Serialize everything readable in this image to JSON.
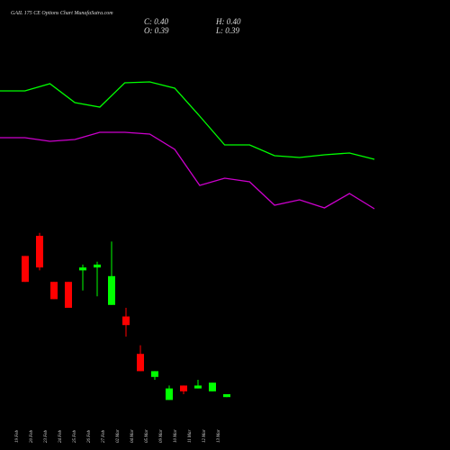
{
  "title": "GAIL 175 CE Options Chart MunafaSutra.com",
  "ohlc": [
    "C: 0.40",
    "H: 0.40",
    "O: 0.39",
    "L: 0.39"
  ],
  "chart_data": [
    {
      "type": "line",
      "categories": [
        null,
        null,
        null,
        null,
        null,
        null,
        null,
        null,
        null,
        null,
        null,
        null,
        null,
        null,
        null,
        null
      ],
      "ylim": [
        0,
        200
      ],
      "series": [
        {
          "color": "#00ff00",
          "values": [
            149,
            149,
            157,
            136,
            131,
            158,
            159,
            152,
            121,
            89,
            89,
            77,
            75,
            78,
            80,
            73
          ]
        },
        {
          "color": "#cc00cc",
          "values": [
            97,
            97,
            93,
            95,
            103,
            103,
            101,
            84,
            44,
            52,
            48,
            22,
            28,
            19,
            35,
            18
          ]
        }
      ]
    },
    {
      "type": "candlestick",
      "categories": [
        "19 Feb",
        "20 Feb",
        "23 Feb",
        "24 Feb",
        "25 Feb",
        "26 Feb",
        "27 Feb",
        "02 Mar",
        "04 Mar",
        "05 Mar",
        "09 Mar",
        "10 Mar",
        "11 Mar",
        "12 Mar",
        "13 Mar"
      ],
      "ylim": [
        0.3,
        1.0
      ],
      "up_color": "#00ff00",
      "down_color": "#ff0000",
      "open": [
        0.88,
        0.95,
        0.79,
        0.79,
        0.83,
        0.84,
        0.71,
        0.67,
        0.54,
        0.46,
        0.38,
        0.43,
        0.42,
        0.41,
        0.39
      ],
      "high": [
        0.88,
        0.96,
        0.79,
        0.79,
        0.85,
        0.86,
        0.93,
        0.7,
        0.57,
        0.48,
        0.43,
        0.43,
        0.45,
        0.44,
        0.4
      ],
      "low": [
        0.79,
        0.83,
        0.73,
        0.7,
        0.76,
        0.74,
        0.71,
        0.6,
        0.48,
        0.45,
        0.38,
        0.4,
        0.42,
        0.41,
        0.39
      ],
      "close": [
        0.79,
        0.84,
        0.73,
        0.7,
        0.84,
        0.85,
        0.81,
        0.64,
        0.48,
        0.48,
        0.42,
        0.41,
        0.43,
        0.44,
        0.4
      ]
    }
  ]
}
